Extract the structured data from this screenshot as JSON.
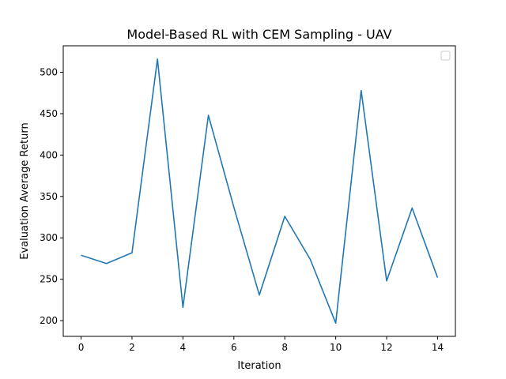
{
  "chart_data": {
    "type": "line",
    "title": "Model-Based RL with CEM Sampling - UAV",
    "xlabel": "Iteration",
    "ylabel": "Evaluation Average Return",
    "xlim": [
      -0.7,
      14.7
    ],
    "ylim": [
      181,
      532
    ],
    "xticks": [
      0,
      2,
      4,
      6,
      8,
      10,
      12,
      14
    ],
    "yticks": [
      200,
      250,
      300,
      350,
      400,
      450,
      500
    ],
    "grid": false,
    "legend": "top-right (empty)",
    "series": [
      {
        "color": "#1f77b4",
        "x": [
          0,
          1,
          2,
          3,
          4,
          5,
          6,
          7,
          8,
          9,
          10,
          11,
          12,
          13,
          14
        ],
        "y": [
          279,
          269,
          282,
          516,
          216,
          448,
          337,
          231,
          326,
          274,
          197,
          478,
          248,
          336,
          252
        ]
      }
    ]
  }
}
